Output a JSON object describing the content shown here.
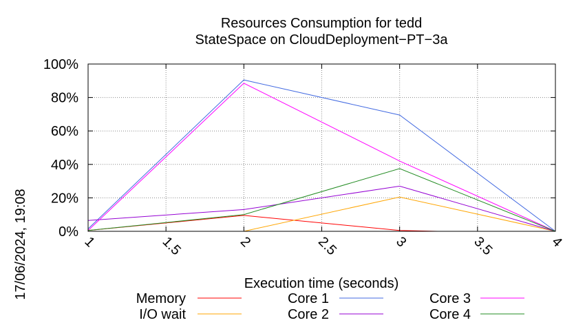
{
  "chart_data": {
    "type": "line",
    "title": "Resources Consumption for tedd",
    "subtitle": "StateSpace on CloudDeployment−PT−3a",
    "xlabel": "Execution time (seconds)",
    "ylabel": "",
    "timestamp": "17/06/2024, 19:08",
    "xlim": [
      1,
      4
    ],
    "ylim": [
      0,
      100
    ],
    "xticks": [
      {
        "value": 1,
        "label": "1"
      },
      {
        "value": 1.5,
        "label": "1.5"
      },
      {
        "value": 2,
        "label": "2"
      },
      {
        "value": 2.5,
        "label": "2.5"
      },
      {
        "value": 3,
        "label": "3"
      },
      {
        "value": 3.5,
        "label": "3.5"
      },
      {
        "value": 4,
        "label": "4"
      }
    ],
    "yticks": [
      {
        "value": 0,
        "label": "0%"
      },
      {
        "value": 20,
        "label": "20%"
      },
      {
        "value": 40,
        "label": "40%"
      },
      {
        "value": 60,
        "label": "60%"
      },
      {
        "value": 80,
        "label": "80%"
      },
      {
        "value": 100,
        "label": "100%"
      }
    ],
    "grid": true,
    "legend_position": "bottom",
    "series": [
      {
        "name": "Memory",
        "color": "#ff0000",
        "x": [
          1,
          2,
          3,
          3.25
        ],
        "y": [
          0.5,
          9.5,
          0.5,
          0
        ]
      },
      {
        "name": "I/O wait",
        "color": "#ffa500",
        "x": [
          1,
          2,
          3,
          4
        ],
        "y": [
          0,
          0,
          20.5,
          0
        ]
      },
      {
        "name": "Core 1",
        "color": "#4169e1",
        "x": [
          1,
          2,
          3,
          4
        ],
        "y": [
          1.5,
          90.5,
          69.5,
          0
        ]
      },
      {
        "name": "Core 2",
        "color": "#9400d3",
        "x": [
          1,
          2,
          3,
          4
        ],
        "y": [
          6.5,
          13,
          27,
          0
        ]
      },
      {
        "name": "Core 3",
        "color": "#ff00ff",
        "x": [
          1,
          2,
          3,
          4
        ],
        "y": [
          0.5,
          88.5,
          42,
          0
        ]
      },
      {
        "name": "Core 4",
        "color": "#228b22",
        "x": [
          1,
          2,
          3,
          4
        ],
        "y": [
          0.5,
          10,
          37.5,
          0
        ]
      }
    ]
  }
}
